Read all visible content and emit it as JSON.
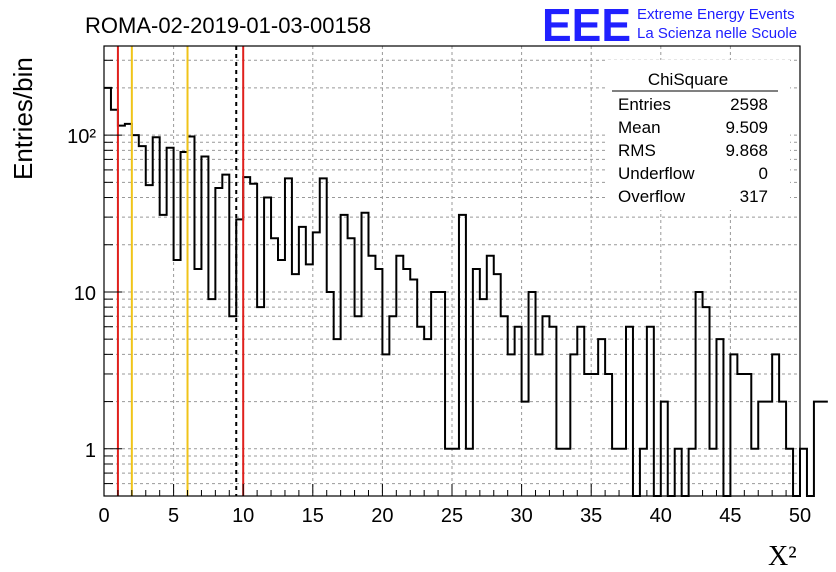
{
  "title": "ROMA-02-2019-01-03-00158",
  "logo": {
    "mark": "EEE",
    "line1": "Extreme Energy Events",
    "line2": "La Scienza nelle Scuole",
    "color": "#1f1fff"
  },
  "stats": {
    "name": "ChiSquare",
    "rows": [
      {
        "label": "Entries",
        "value": "2598"
      },
      {
        "label": "Mean",
        "value": "9.509"
      },
      {
        "label": "RMS",
        "value": "9.868"
      },
      {
        "label": "Underflow",
        "value": "0"
      },
      {
        "label": "Overflow",
        "value": "317"
      }
    ]
  },
  "chart_data": {
    "type": "bar",
    "style": "step-histogram",
    "title": "ROMA-02-2019-01-03-00158",
    "xlabel": "X²",
    "ylabel": "Entries/bin",
    "xlim": [
      0,
      50
    ],
    "ylim": [
      0.5,
      370
    ],
    "yscale": "log",
    "grid": true,
    "bin_width": 0.5,
    "x_ticks": [
      "0",
      "5",
      "10",
      "15",
      "20",
      "25",
      "30",
      "35",
      "40",
      "45",
      "50"
    ],
    "y_ticks": [
      {
        "value": 1,
        "label": "1"
      },
      {
        "value": 10,
        "label": "10"
      },
      {
        "value": 100,
        "label": "10²"
      }
    ],
    "values": [
      200,
      145,
      115,
      118,
      100,
      85,
      48,
      97,
      31,
      83,
      16,
      78,
      98,
      14,
      73,
      9,
      46,
      56,
      7,
      29,
      54,
      49,
      8,
      40,
      22,
      16,
      53,
      13,
      26,
      15,
      24,
      53,
      10,
      5,
      31,
      22,
      7,
      32,
      17,
      14,
      4,
      7,
      17,
      14,
      12,
      6,
      5,
      10,
      10,
      1,
      1,
      31,
      1,
      14,
      9,
      17,
      13,
      7,
      4,
      6,
      2,
      10,
      4,
      7,
      6,
      1,
      1,
      4,
      6,
      3,
      3,
      5,
      3,
      1,
      1,
      6,
      0,
      1,
      6,
      0,
      2,
      0,
      1,
      0,
      1,
      10,
      8,
      1,
      5,
      0,
      4,
      3,
      3,
      1,
      2,
      2,
      4,
      2,
      1,
      0,
      1,
      0,
      2,
      2
    ],
    "lines": [
      {
        "x": 1,
        "color": "#e0201c",
        "style": "solid"
      },
      {
        "x": 2,
        "color": "#f0c419",
        "style": "solid"
      },
      {
        "x": 6,
        "color": "#f0c419",
        "style": "solid"
      },
      {
        "x": 9.5,
        "color": "#000000",
        "style": "dashed"
      },
      {
        "x": 10,
        "color": "#e0201c",
        "style": "solid"
      }
    ]
  }
}
